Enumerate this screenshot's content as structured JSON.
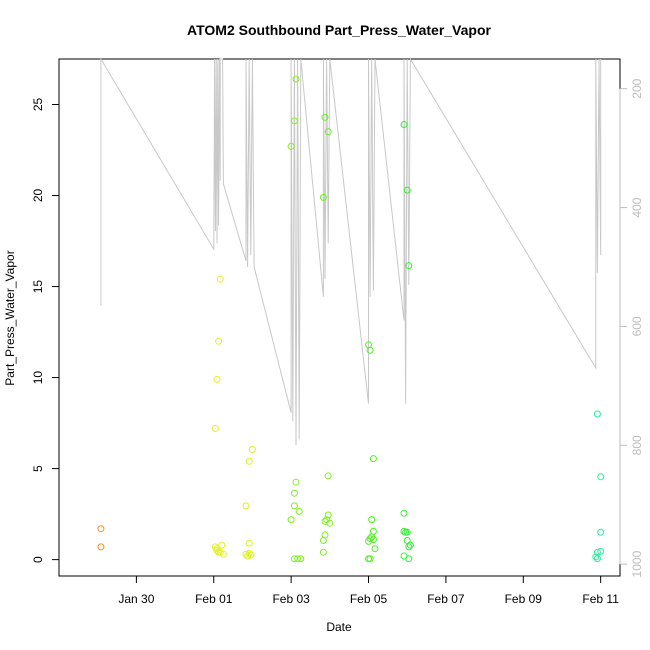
{
  "chart_data": {
    "type": "scatter",
    "title": "ATOM2 Southbound Part_Press_Water_Vapor",
    "xlabel": "Date",
    "ylabel": "Part_Press_Water_Vapor",
    "xlim": [
      "2016-01-28T00:00",
      "2016-02-11T12:00"
    ],
    "ylim": [
      -0.9,
      27.5
    ],
    "x_ticks": [
      "2016-01-30",
      "2016-02-01",
      "2016-02-03",
      "2016-02-05",
      "2016-02-07",
      "2016-02-09",
      "2016-02-11"
    ],
    "x_tick_labels": [
      "Jan 30",
      "Feb 01",
      "Feb 03",
      "Feb 05",
      "Feb 07",
      "Feb 09",
      "Feb 11"
    ],
    "y_ticks": [
      0,
      5,
      10,
      15,
      20,
      25
    ],
    "y_tick_labels": [
      "0",
      "5",
      "10",
      "15",
      "20",
      "25"
    ],
    "right_axis": {
      "label": "",
      "color": "#bdbdbd",
      "lim": [
        1020,
        150
      ],
      "ticks": [
        200,
        400,
        600,
        800,
        1000
      ],
      "tick_labels": [
        "200",
        "400",
        "600",
        "800",
        "1000"
      ]
    },
    "grid": false,
    "legend": "none",
    "points": [
      {
        "x": "2016-01-29T02:00",
        "y": 1.7,
        "color": "#ff8c1a"
      },
      {
        "x": "2016-01-29T02:00",
        "y": 0.7,
        "color": "#ff8c1a"
      },
      {
        "x": "2016-02-01T01:00",
        "y": 7.2,
        "color": "#e3f21f"
      },
      {
        "x": "2016-02-01T02:00",
        "y": 9.9,
        "color": "#e3f21f"
      },
      {
        "x": "2016-02-01T03:00",
        "y": 12.0,
        "color": "#e3f21f"
      },
      {
        "x": "2016-02-01T04:00",
        "y": 15.4,
        "color": "#e3f21f"
      },
      {
        "x": "2016-02-01T01:00",
        "y": 0.7,
        "color": "#e3f21f"
      },
      {
        "x": "2016-02-01T02:00",
        "y": 0.5,
        "color": "#e3f21f"
      },
      {
        "x": "2016-02-01T03:00",
        "y": 0.4,
        "color": "#e3f21f"
      },
      {
        "x": "2016-02-01T05:00",
        "y": 0.8,
        "color": "#e3f21f"
      },
      {
        "x": "2016-02-01T06:00",
        "y": 0.3,
        "color": "#e3f21f"
      },
      {
        "x": "2016-02-01T02:00",
        "y": 0.6,
        "color": "#e3f21f"
      },
      {
        "x": "2016-02-01T04:00",
        "y": 0.4,
        "color": "#e3f21f"
      },
      {
        "x": "2016-02-01T20:00",
        "y": 2.95,
        "color": "#d9f21f"
      },
      {
        "x": "2016-02-01T22:00",
        "y": 5.4,
        "color": "#d9f21f"
      },
      {
        "x": "2016-02-02T00:00",
        "y": 6.05,
        "color": "#d9f21f"
      },
      {
        "x": "2016-02-01T22:00",
        "y": 0.9,
        "color": "#d9f21f"
      },
      {
        "x": "2016-02-01T20:00",
        "y": 0.3,
        "color": "#d9f21f"
      },
      {
        "x": "2016-02-01T21:00",
        "y": 0.2,
        "color": "#d9f21f"
      },
      {
        "x": "2016-02-01T22:00",
        "y": 0.35,
        "color": "#d9f21f"
      },
      {
        "x": "2016-02-01T23:00",
        "y": 0.25,
        "color": "#d9f21f"
      },
      {
        "x": "2016-02-03T00:00",
        "y": 22.7,
        "color": "#80f21f"
      },
      {
        "x": "2016-02-03T02:00",
        "y": 24.1,
        "color": "#80f21f"
      },
      {
        "x": "2016-02-03T03:00",
        "y": 26.4,
        "color": "#80f21f"
      },
      {
        "x": "2016-02-03T03:00",
        "y": 4.25,
        "color": "#80f21f"
      },
      {
        "x": "2016-02-03T02:00",
        "y": 3.65,
        "color": "#80f21f"
      },
      {
        "x": "2016-02-03T02:00",
        "y": 2.95,
        "color": "#80f21f"
      },
      {
        "x": "2016-02-03T05:00",
        "y": 2.65,
        "color": "#80f21f"
      },
      {
        "x": "2016-02-03T00:00",
        "y": 2.2,
        "color": "#80f21f"
      },
      {
        "x": "2016-02-03T02:00",
        "y": 0.05,
        "color": "#80f21f"
      },
      {
        "x": "2016-02-03T04:00",
        "y": 0.05,
        "color": "#80f21f"
      },
      {
        "x": "2016-02-03T06:00",
        "y": 0.05,
        "color": "#80f21f"
      },
      {
        "x": "2016-02-03T20:00",
        "y": 0.4,
        "color": "#80f21f"
      },
      {
        "x": "2016-02-03T20:00",
        "y": 1.05,
        "color": "#80f21f"
      },
      {
        "x": "2016-02-03T21:00",
        "y": 1.35,
        "color": "#80f21f"
      },
      {
        "x": "2016-02-03T21:00",
        "y": 2.1,
        "color": "#80f21f"
      },
      {
        "x": "2016-02-03T22:00",
        "y": 2.2,
        "color": "#80f21f"
      },
      {
        "x": "2016-02-03T23:00",
        "y": 2.45,
        "color": "#80f21f"
      },
      {
        "x": "2016-02-04T00:00",
        "y": 2.0,
        "color": "#80f21f"
      },
      {
        "x": "2016-02-03T23:00",
        "y": 4.6,
        "color": "#80f21f"
      },
      {
        "x": "2016-02-03T20:00",
        "y": 19.9,
        "color": "#66f21f"
      },
      {
        "x": "2016-02-03T21:00",
        "y": 24.3,
        "color": "#66f21f"
      },
      {
        "x": "2016-02-03T23:00",
        "y": 23.5,
        "color": "#66f21f"
      },
      {
        "x": "2016-02-05T00:00",
        "y": 11.8,
        "color": "#4df21f"
      },
      {
        "x": "2016-02-05T01:00",
        "y": 11.5,
        "color": "#4df21f"
      },
      {
        "x": "2016-02-05T03:00",
        "y": 5.55,
        "color": "#4df21f"
      },
      {
        "x": "2016-02-05T02:00",
        "y": 2.2,
        "color": "#4df21f"
      },
      {
        "x": "2016-02-05T03:00",
        "y": 1.55,
        "color": "#4df21f"
      },
      {
        "x": "2016-02-05T00:00",
        "y": 1.0,
        "color": "#4df21f"
      },
      {
        "x": "2016-02-05T01:00",
        "y": 1.15,
        "color": "#4df21f"
      },
      {
        "x": "2016-02-05T02:00",
        "y": 1.25,
        "color": "#4df21f"
      },
      {
        "x": "2016-02-05T03:00",
        "y": 1.1,
        "color": "#4df21f"
      },
      {
        "x": "2016-02-05T04:00",
        "y": 0.6,
        "color": "#4df21f"
      },
      {
        "x": "2016-02-05T00:00",
        "y": 0.05,
        "color": "#4df21f"
      },
      {
        "x": "2016-02-05T01:00",
        "y": 0.05,
        "color": "#4df21f"
      },
      {
        "x": "2016-02-05T22:00",
        "y": 2.55,
        "color": "#33f233"
      },
      {
        "x": "2016-02-05T22:00",
        "y": 1.55,
        "color": "#33f233"
      },
      {
        "x": "2016-02-05T23:00",
        "y": 1.5,
        "color": "#33f233"
      },
      {
        "x": "2016-02-06T00:00",
        "y": 1.5,
        "color": "#33f233"
      },
      {
        "x": "2016-02-06T00:00",
        "y": 1.05,
        "color": "#33f233"
      },
      {
        "x": "2016-02-06T02:00",
        "y": 0.8,
        "color": "#33f233"
      },
      {
        "x": "2016-02-06T01:00",
        "y": 0.7,
        "color": "#33f233"
      },
      {
        "x": "2016-02-05T22:00",
        "y": 0.2,
        "color": "#33f233"
      },
      {
        "x": "2016-02-06T01:00",
        "y": 0.05,
        "color": "#33f233"
      },
      {
        "x": "2016-02-05T22:00",
        "y": 23.9,
        "color": "#33f233"
      },
      {
        "x": "2016-02-06T00:00",
        "y": 20.3,
        "color": "#33f233"
      },
      {
        "x": "2016-02-06T01:00",
        "y": 16.15,
        "color": "#33f233"
      },
      {
        "x": "2016-02-10T22:00",
        "y": 8.0,
        "color": "#1ff29a"
      },
      {
        "x": "2016-02-11T00:00",
        "y": 4.55,
        "color": "#1ff29a"
      },
      {
        "x": "2016-02-11T00:00",
        "y": 1.5,
        "color": "#1ff29a"
      },
      {
        "x": "2016-02-11T00:00",
        "y": 0.45,
        "color": "#1ff29a"
      },
      {
        "x": "2016-02-10T22:00",
        "y": 0.4,
        "color": "#1ff29a"
      },
      {
        "x": "2016-02-10T21:00",
        "y": 0.15,
        "color": "#1ff29a"
      },
      {
        "x": "2016-02-10T22:00",
        "y": 0.05,
        "color": "#1ff29a"
      }
    ],
    "pressure_series": {
      "color": "#c8c8c8",
      "right_axis_units": true,
      "x": [
        "2016-01-29T02:00",
        "2016-01-29T02:00",
        "2016-02-01T00:00",
        "2016-02-01T00:30",
        "2016-02-01T01:00",
        "2016-02-01T01:30",
        "2016-02-01T02:00",
        "2016-02-01T02:30",
        "2016-02-01T03:00",
        "2016-02-01T03:30",
        "2016-02-01T04:00",
        "2016-02-01T04:00",
        "2016-02-01T04:30",
        "2016-02-01T05:00",
        "2016-02-01T05:30",
        "2016-02-01T06:00",
        "2016-02-01T20:00",
        "2016-02-01T20:00",
        "2016-02-01T21:00",
        "2016-02-01T22:00",
        "2016-02-01T23:00",
        "2016-02-02T00:00",
        "2016-02-02T01:00",
        "2016-02-03T00:00",
        "2016-02-03T00:00",
        "2016-02-03T01:00",
        "2016-02-03T02:00",
        "2016-02-03T03:00",
        "2016-02-03T04:00",
        "2016-02-03T05:00",
        "2016-02-03T06:00",
        "2016-02-03T20:00",
        "2016-02-03T20:00",
        "2016-02-03T21:00",
        "2016-02-03T22:00",
        "2016-02-03T23:00",
        "2016-02-04T00:00",
        "2016-02-05T00:00",
        "2016-02-05T00:00",
        "2016-02-05T01:00",
        "2016-02-05T02:00",
        "2016-02-05T03:00",
        "2016-02-05T04:00",
        "2016-02-05T22:00",
        "2016-02-05T22:00",
        "2016-02-05T23:00",
        "2016-02-06T00:00",
        "2016-02-06T01:00",
        "2016-02-06T02:00",
        "2016-02-10T21:00",
        "2016-02-10T21:00",
        "2016-02-10T22:00",
        "2016-02-10T23:00",
        "2016-02-11T00:00",
        "2016-02-11T00:00"
      ],
      "y": [
        565,
        150,
        470,
        150,
        440,
        150,
        460,
        150,
        430,
        150,
        355,
        150,
        150,
        150,
        150,
        360,
        490,
        150,
        500,
        150,
        480,
        150,
        500,
        745,
        150,
        760,
        150,
        800,
        150,
        790,
        150,
        550,
        150,
        520,
        150,
        460,
        150,
        730,
        150,
        550,
        150,
        540,
        150,
        590,
        150,
        730,
        150,
        530,
        150,
        670,
        150,
        510,
        150,
        480,
        150
      ]
    }
  }
}
